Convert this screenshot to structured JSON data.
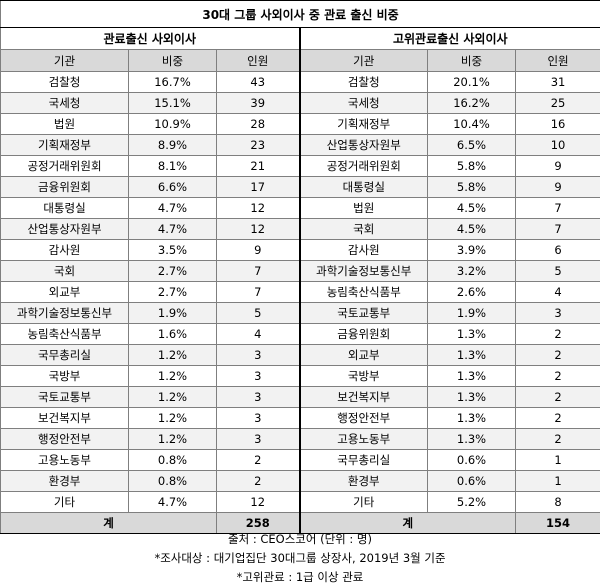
{
  "title": "30대 그룹 사외이사 중 관료 출신 비중",
  "left": {
    "heading": "관료출신 사외이사",
    "col_agency": "기관",
    "col_share": "비중",
    "col_count": "인원",
    "total_label": "계",
    "total_count": "258",
    "rows": [
      {
        "agency": "검찰청",
        "share": "16.7%",
        "count": "43"
      },
      {
        "agency": "국세청",
        "share": "15.1%",
        "count": "39"
      },
      {
        "agency": "법원",
        "share": "10.9%",
        "count": "28"
      },
      {
        "agency": "기획재정부",
        "share": "8.9%",
        "count": "23"
      },
      {
        "agency": "공정거래위원회",
        "share": "8.1%",
        "count": "21"
      },
      {
        "agency": "금융위원회",
        "share": "6.6%",
        "count": "17"
      },
      {
        "agency": "대통령실",
        "share": "4.7%",
        "count": "12"
      },
      {
        "agency": "산업통상자원부",
        "share": "4.7%",
        "count": "12"
      },
      {
        "agency": "감사원",
        "share": "3.5%",
        "count": "9"
      },
      {
        "agency": "국회",
        "share": "2.7%",
        "count": "7"
      },
      {
        "agency": "외교부",
        "share": "2.7%",
        "count": "7"
      },
      {
        "agency": "과학기술정보통신부",
        "share": "1.9%",
        "count": "5"
      },
      {
        "agency": "농림축산식품부",
        "share": "1.6%",
        "count": "4"
      },
      {
        "agency": "국무총리실",
        "share": "1.2%",
        "count": "3"
      },
      {
        "agency": "국방부",
        "share": "1.2%",
        "count": "3"
      },
      {
        "agency": "국토교통부",
        "share": "1.2%",
        "count": "3"
      },
      {
        "agency": "보건복지부",
        "share": "1.2%",
        "count": "3"
      },
      {
        "agency": "행정안전부",
        "share": "1.2%",
        "count": "3"
      },
      {
        "agency": "고용노동부",
        "share": "0.8%",
        "count": "2"
      },
      {
        "agency": "환경부",
        "share": "0.8%",
        "count": "2"
      },
      {
        "agency": "기타",
        "share": "4.7%",
        "count": "12"
      }
    ]
  },
  "right": {
    "heading": "고위관료출신 사외이사",
    "col_agency": "기관",
    "col_share": "비중",
    "col_count": "인원",
    "total_label": "계",
    "total_count": "154",
    "rows": [
      {
        "agency": "검찰청",
        "share": "20.1%",
        "count": "31"
      },
      {
        "agency": "국세청",
        "share": "16.2%",
        "count": "25"
      },
      {
        "agency": "기획재정부",
        "share": "10.4%",
        "count": "16"
      },
      {
        "agency": "산업통상자원부",
        "share": "6.5%",
        "count": "10"
      },
      {
        "agency": "공정거래위원회",
        "share": "5.8%",
        "count": "9"
      },
      {
        "agency": "대통령실",
        "share": "5.8%",
        "count": "9"
      },
      {
        "agency": "법원",
        "share": "4.5%",
        "count": "7"
      },
      {
        "agency": "국회",
        "share": "4.5%",
        "count": "7"
      },
      {
        "agency": "감사원",
        "share": "3.9%",
        "count": "6"
      },
      {
        "agency": "과학기술정보통신부",
        "share": "3.2%",
        "count": "5"
      },
      {
        "agency": "농림축산식품부",
        "share": "2.6%",
        "count": "4"
      },
      {
        "agency": "국토교통부",
        "share": "1.9%",
        "count": "3"
      },
      {
        "agency": "금융위원회",
        "share": "1.3%",
        "count": "2"
      },
      {
        "agency": "외교부",
        "share": "1.3%",
        "count": "2"
      },
      {
        "agency": "국방부",
        "share": "1.3%",
        "count": "2"
      },
      {
        "agency": "보건복지부",
        "share": "1.3%",
        "count": "2"
      },
      {
        "agency": "행정안전부",
        "share": "1.3%",
        "count": "2"
      },
      {
        "agency": "고용노동부",
        "share": "1.3%",
        "count": "2"
      },
      {
        "agency": "국무총리실",
        "share": "0.6%",
        "count": "1"
      },
      {
        "agency": "환경부",
        "share": "0.6%",
        "count": "1"
      },
      {
        "agency": "기타",
        "share": "5.2%",
        "count": "8"
      }
    ]
  },
  "notes": {
    "source": "출처 : CEO스코어 (단위 : 명)",
    "survey": "*조사대상 : 대기업집단 30대그룹 상장사, 2019년 3월 기준",
    "definition": "*고위관료 : 1급 이상 관료"
  }
}
